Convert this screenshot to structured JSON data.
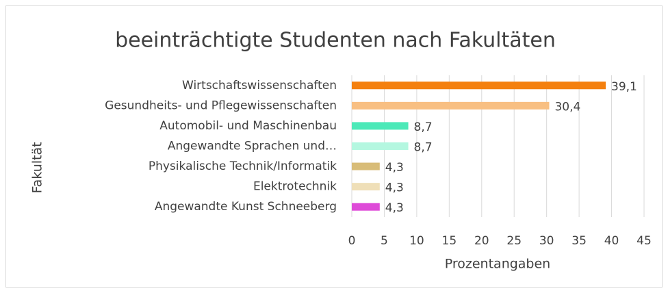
{
  "chart_data": {
    "type": "bar",
    "orientation": "horizontal",
    "title": "beeinträchtigte Studenten nach  Fakultäten",
    "x_label": "Prozentangaben",
    "y_label": "Fakultät",
    "categories": [
      "Wirtschaftswissenschaften",
      "Gesundheits- und Pflegewissenschaften",
      "Automobil- und Maschinenbau",
      "Angewandte Sprachen und…",
      "Physikalische Technik/Informatik",
      "Elektrotechnik",
      "Angewandte Kunst Schneeberg"
    ],
    "values": [
      39.1,
      30.4,
      8.7,
      8.7,
      4.3,
      4.3,
      4.3
    ],
    "value_labels": [
      "39,1",
      "30,4",
      "8,7",
      "8,7",
      "4,3",
      "4,3",
      "4,3"
    ],
    "colors": [
      "#f4800f",
      "#f8bf82",
      "#4ce9b8",
      "#b4f7e0",
      "#d8bc78",
      "#efdfb8",
      "#de4bd8"
    ],
    "xlim": [
      0,
      45
    ],
    "xticks": [
      0,
      5,
      10,
      15,
      20,
      25,
      30,
      35,
      40,
      45
    ],
    "grid": true
  }
}
